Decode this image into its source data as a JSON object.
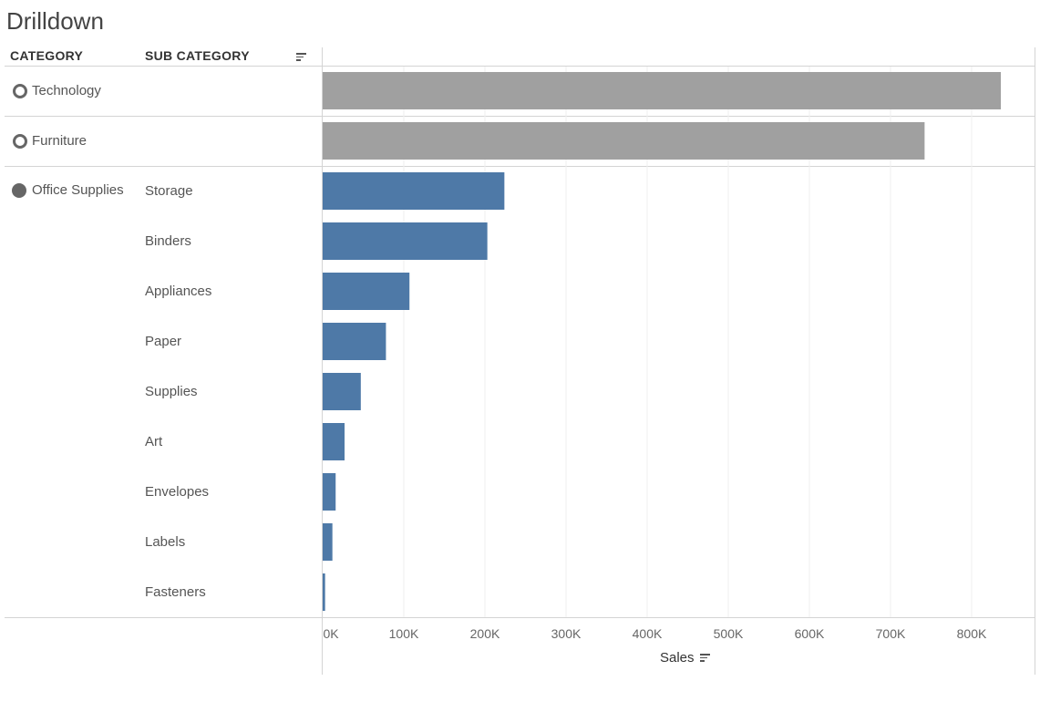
{
  "title": "Drilldown",
  "headers": {
    "category": "CATEGORY",
    "sub_category": "SUB CATEGORY"
  },
  "axis": {
    "title": "Sales"
  },
  "colors": {
    "collapsed_bar": "#a0a0a0",
    "expanded_bar": "#4e79a7",
    "marker": "#666666"
  },
  "chart_data": {
    "type": "bar",
    "orientation": "horizontal",
    "xlabel": "Sales",
    "xlim": [
      0,
      880000
    ],
    "x_ticks": [
      0,
      100000,
      200000,
      300000,
      400000,
      500000,
      600000,
      700000,
      800000
    ],
    "x_tick_labels": [
      "0K",
      "100K",
      "200K",
      "300K",
      "400K",
      "500K",
      "600K",
      "700K",
      "800K"
    ],
    "grid": true,
    "rows": [
      {
        "category": "Technology",
        "sub_category": "",
        "value": 836000,
        "expanded": false
      },
      {
        "category": "Furniture",
        "sub_category": "",
        "value": 742000,
        "expanded": false
      },
      {
        "category": "Office Supplies",
        "sub_category": "Storage",
        "value": 224000,
        "expanded": true
      },
      {
        "category": "Office Supplies",
        "sub_category": "Binders",
        "value": 203000,
        "expanded": true
      },
      {
        "category": "Office Supplies",
        "sub_category": "Appliances",
        "value": 107000,
        "expanded": true
      },
      {
        "category": "Office Supplies",
        "sub_category": "Paper",
        "value": 78000,
        "expanded": true
      },
      {
        "category": "Office Supplies",
        "sub_category": "Supplies",
        "value": 47000,
        "expanded": true
      },
      {
        "category": "Office Supplies",
        "sub_category": "Art",
        "value": 27000,
        "expanded": true
      },
      {
        "category": "Office Supplies",
        "sub_category": "Envelopes",
        "value": 16000,
        "expanded": true
      },
      {
        "category": "Office Supplies",
        "sub_category": "Labels",
        "value": 12000,
        "expanded": true
      },
      {
        "category": "Office Supplies",
        "sub_category": "Fasteners",
        "value": 3000,
        "expanded": true
      }
    ]
  }
}
